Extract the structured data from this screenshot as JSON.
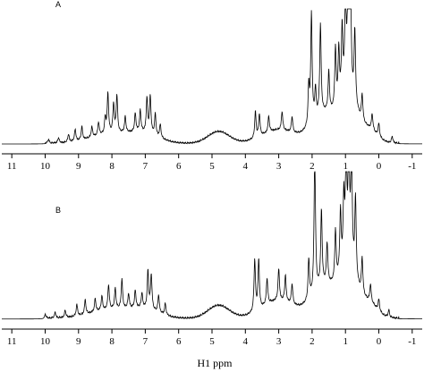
{
  "chart_data": {
    "type": "line",
    "xlabel": "H1 ppm",
    "x_reversed": true,
    "xlim": [
      11.3,
      -1.3
    ],
    "x_ticks": [
      11,
      10,
      9,
      8,
      7,
      6,
      5,
      4,
      3,
      2,
      1,
      0,
      -1
    ],
    "x_tick_labels": [
      "11",
      "10",
      "9",
      "8",
      "7",
      "6",
      "5",
      "4",
      "3",
      "2",
      "1",
      "0",
      "-1"
    ],
    "y_axis_shown": false,
    "grid": false,
    "panels": [
      {
        "label": "A",
        "baseline": 0.02,
        "broad": [
          {
            "c": 8.0,
            "h": 0.07,
            "w": 0.9
          },
          {
            "c": 7.0,
            "h": 0.06,
            "w": 0.6
          },
          {
            "c": 4.8,
            "h": 0.09,
            "w": 0.45
          },
          {
            "c": 3.0,
            "h": 0.1,
            "w": 0.7
          },
          {
            "c": 1.6,
            "h": 0.22,
            "w": 0.55
          },
          {
            "c": 0.9,
            "h": 0.32,
            "w": 0.35
          },
          {
            "c": 0.3,
            "h": 0.1,
            "w": 0.35
          }
        ],
        "peaks": [
          {
            "x": 9.9,
            "y": 0.03
          },
          {
            "x": 9.6,
            "y": 0.04
          },
          {
            "x": 9.3,
            "y": 0.06
          },
          {
            "x": 9.1,
            "y": 0.09
          },
          {
            "x": 8.9,
            "y": 0.1
          },
          {
            "x": 8.6,
            "y": 0.08
          },
          {
            "x": 8.4,
            "y": 0.1
          },
          {
            "x": 8.2,
            "y": 0.12
          },
          {
            "x": 8.12,
            "y": 0.3
          },
          {
            "x": 7.95,
            "y": 0.22
          },
          {
            "x": 7.85,
            "y": 0.28
          },
          {
            "x": 7.6,
            "y": 0.12
          },
          {
            "x": 7.3,
            "y": 0.14
          },
          {
            "x": 7.15,
            "y": 0.16
          },
          {
            "x": 6.95,
            "y": 0.26
          },
          {
            "x": 6.85,
            "y": 0.28
          },
          {
            "x": 6.7,
            "y": 0.16
          },
          {
            "x": 6.55,
            "y": 0.1
          },
          {
            "x": 3.7,
            "y": 0.2
          },
          {
            "x": 3.58,
            "y": 0.17
          },
          {
            "x": 3.3,
            "y": 0.12
          },
          {
            "x": 2.9,
            "y": 0.14
          },
          {
            "x": 2.6,
            "y": 0.12
          },
          {
            "x": 2.1,
            "y": 0.3
          },
          {
            "x": 2.02,
            "y": 0.82
          },
          {
            "x": 1.9,
            "y": 0.22
          },
          {
            "x": 1.75,
            "y": 0.68
          },
          {
            "x": 1.5,
            "y": 0.3
          },
          {
            "x": 1.3,
            "y": 0.45
          },
          {
            "x": 1.2,
            "y": 0.4
          },
          {
            "x": 1.1,
            "y": 0.52
          },
          {
            "x": 1.0,
            "y": 0.7
          },
          {
            "x": 0.92,
            "y": 0.95
          },
          {
            "x": 0.85,
            "y": 0.8
          },
          {
            "x": 0.72,
            "y": 0.55
          },
          {
            "x": 0.5,
            "y": 0.2
          },
          {
            "x": 0.2,
            "y": 0.12
          },
          {
            "x": 0.0,
            "y": 0.1
          },
          {
            "x": -0.4,
            "y": 0.05
          }
        ]
      },
      {
        "label": "B",
        "baseline": 0.02,
        "broad": [
          {
            "c": 8.0,
            "h": 0.06,
            "w": 0.9
          },
          {
            "c": 7.0,
            "h": 0.05,
            "w": 0.6
          },
          {
            "c": 4.8,
            "h": 0.09,
            "w": 0.45
          },
          {
            "c": 3.0,
            "h": 0.12,
            "w": 0.7
          },
          {
            "c": 1.6,
            "h": 0.22,
            "w": 0.55
          },
          {
            "c": 0.9,
            "h": 0.3,
            "w": 0.35
          },
          {
            "c": 0.3,
            "h": 0.1,
            "w": 0.35
          }
        ],
        "peaks": [
          {
            "x": 10.0,
            "y": 0.03
          },
          {
            "x": 9.7,
            "y": 0.04
          },
          {
            "x": 9.4,
            "y": 0.05
          },
          {
            "x": 9.05,
            "y": 0.08
          },
          {
            "x": 8.8,
            "y": 0.1
          },
          {
            "x": 8.5,
            "y": 0.09
          },
          {
            "x": 8.3,
            "y": 0.1
          },
          {
            "x": 8.1,
            "y": 0.17
          },
          {
            "x": 7.9,
            "y": 0.14
          },
          {
            "x": 7.7,
            "y": 0.2
          },
          {
            "x": 7.5,
            "y": 0.1
          },
          {
            "x": 7.3,
            "y": 0.12
          },
          {
            "x": 7.1,
            "y": 0.1
          },
          {
            "x": 6.92,
            "y": 0.26
          },
          {
            "x": 6.82,
            "y": 0.24
          },
          {
            "x": 6.6,
            "y": 0.12
          },
          {
            "x": 6.4,
            "y": 0.08
          },
          {
            "x": 3.72,
            "y": 0.36
          },
          {
            "x": 3.6,
            "y": 0.34
          },
          {
            "x": 3.35,
            "y": 0.18
          },
          {
            "x": 3.0,
            "y": 0.22
          },
          {
            "x": 2.8,
            "y": 0.18
          },
          {
            "x": 2.6,
            "y": 0.14
          },
          {
            "x": 2.1,
            "y": 0.28
          },
          {
            "x": 1.92,
            "y": 0.98
          },
          {
            "x": 1.72,
            "y": 0.52
          },
          {
            "x": 1.55,
            "y": 0.28
          },
          {
            "x": 1.3,
            "y": 0.35
          },
          {
            "x": 1.15,
            "y": 0.42
          },
          {
            "x": 1.05,
            "y": 0.45
          },
          {
            "x": 0.98,
            "y": 0.8
          },
          {
            "x": 0.9,
            "y": 0.85
          },
          {
            "x": 0.82,
            "y": 0.82
          },
          {
            "x": 0.7,
            "y": 0.55
          },
          {
            "x": 0.5,
            "y": 0.25
          },
          {
            "x": 0.25,
            "y": 0.12
          },
          {
            "x": 0.0,
            "y": 0.08
          },
          {
            "x": -0.3,
            "y": 0.05
          }
        ]
      }
    ]
  }
}
